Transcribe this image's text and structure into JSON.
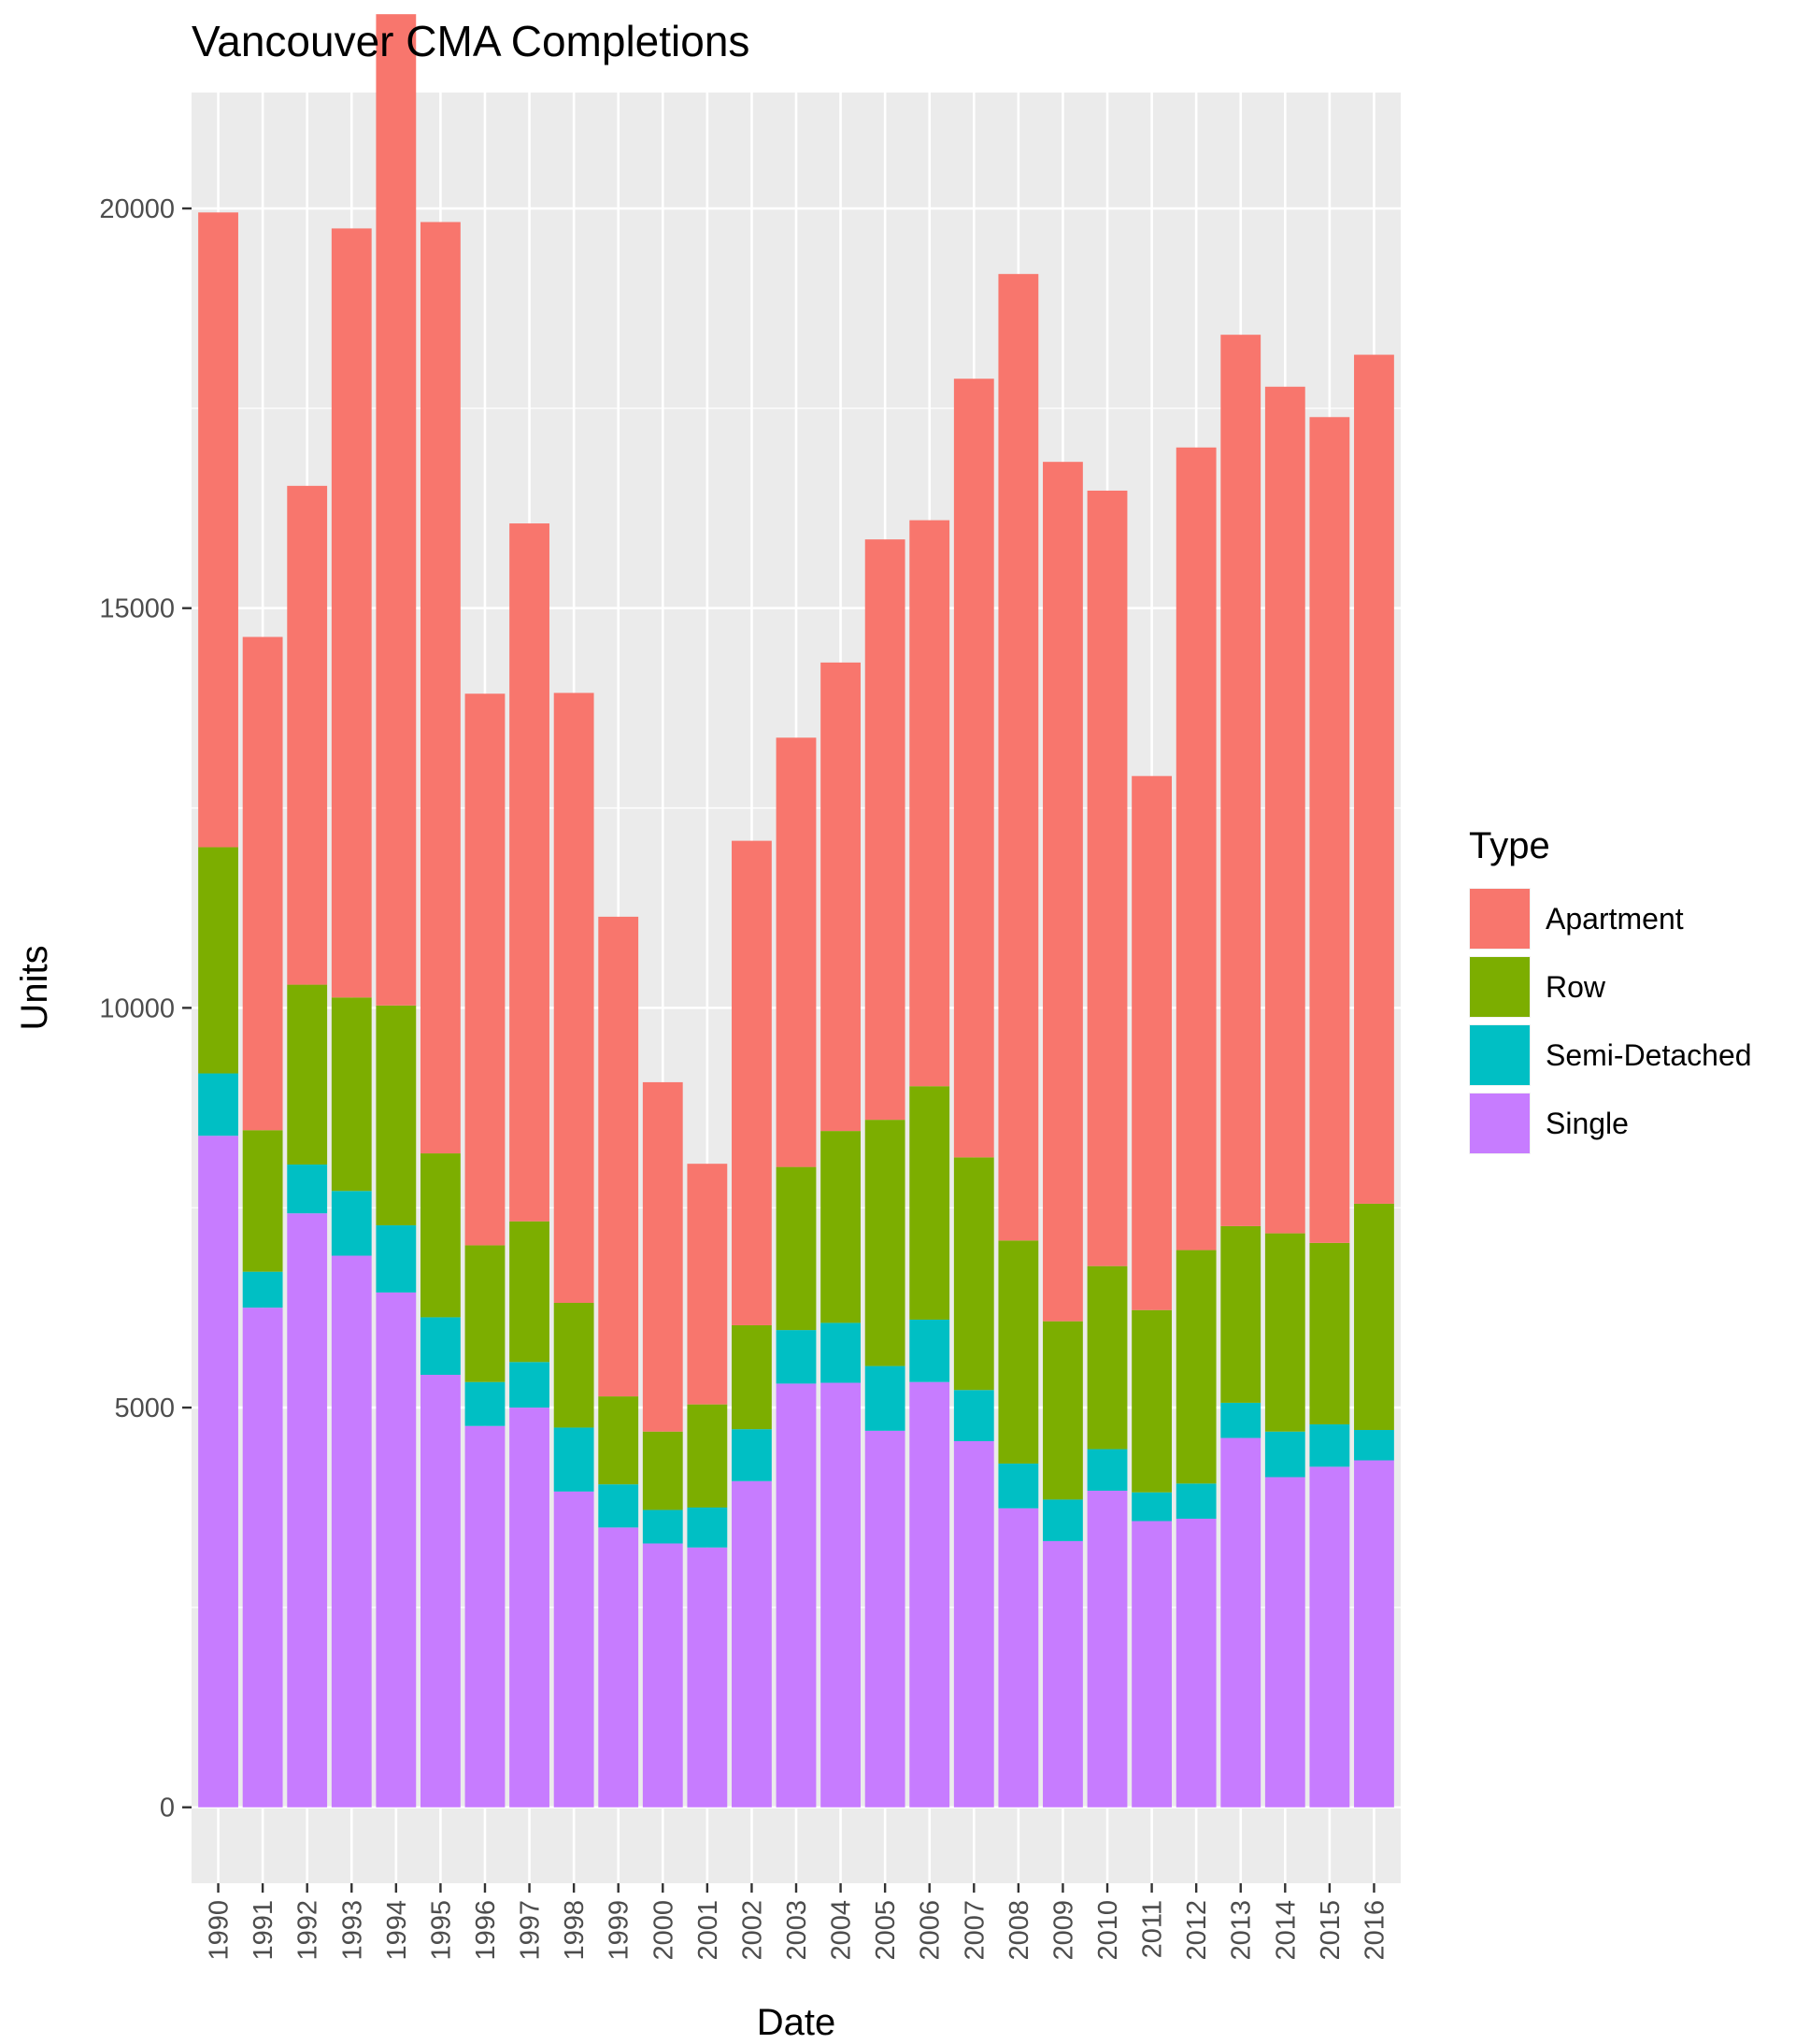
{
  "chart_data": {
    "type": "bar",
    "stacked": true,
    "title": "Vancouver CMA Completions",
    "xlabel": "Date",
    "ylabel": "Units",
    "categories": [
      "1990",
      "1991",
      "1992",
      "1993",
      "1994",
      "1995",
      "1996",
      "1997",
      "1998",
      "1999",
      "2000",
      "2001",
      "2002",
      "2003",
      "2004",
      "2005",
      "2006",
      "2007",
      "2008",
      "2009",
      "2010",
      "2011",
      "2012",
      "2013",
      "2014",
      "2015",
      "2016"
    ],
    "ylim": [
      -950,
      21450
    ],
    "yticks": [
      0,
      5000,
      10000,
      15000,
      20000
    ],
    "ytick_labels": [
      "0",
      "5000",
      "10000",
      "15000",
      "20000"
    ],
    "grid": true,
    "legend_position": "right",
    "legend_title": "Type",
    "series": [
      {
        "name": "Single",
        "color": "#C77CFF",
        "values": [
          8400,
          6250,
          7430,
          6900,
          6440,
          5410,
          4770,
          5000,
          3950,
          3500,
          3300,
          3250,
          4080,
          5300,
          5310,
          4710,
          5320,
          4580,
          3740,
          3330,
          3960,
          3580,
          3610,
          4620,
          4130,
          4260,
          4340
        ]
      },
      {
        "name": "Semi-Detached",
        "color": "#00BFC4",
        "values": [
          780,
          450,
          610,
          810,
          840,
          720,
          550,
          570,
          800,
          540,
          420,
          500,
          650,
          670,
          750,
          810,
          780,
          640,
          560,
          520,
          520,
          360,
          440,
          440,
          570,
          530,
          380
        ]
      },
      {
        "name": "Row",
        "color": "#7CAE00",
        "values": [
          2830,
          1770,
          2250,
          2420,
          2750,
          2050,
          1710,
          1760,
          1560,
          1100,
          980,
          1290,
          1300,
          2040,
          2400,
          3080,
          2920,
          2910,
          2790,
          2230,
          2290,
          2280,
          2920,
          2210,
          2480,
          2270,
          2830
        ]
      },
      {
        "name": "Apartment",
        "color": "#F8766D",
        "values": [
          7940,
          6170,
          6240,
          9620,
          12400,
          11650,
          6900,
          8730,
          7630,
          6000,
          4370,
          3010,
          6060,
          5370,
          5860,
          7260,
          7080,
          9740,
          12090,
          10750,
          9700,
          6680,
          10040,
          11150,
          10590,
          10330,
          10620
        ]
      }
    ],
    "legend_order": [
      "Apartment",
      "Row",
      "Semi-Detached",
      "Single"
    ]
  }
}
